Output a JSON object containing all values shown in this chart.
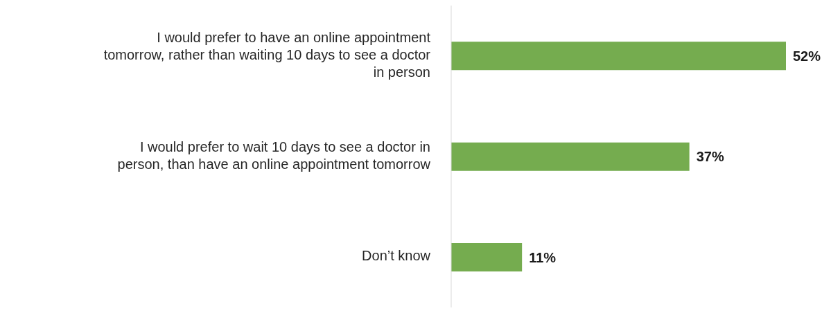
{
  "chart_data": {
    "type": "bar",
    "orientation": "horizontal",
    "categories": [
      "I would prefer to have an online appointment tomorrow, rather than waiting 10 days to see a doctor in person",
      "I would prefer to wait 10 days to see a doctor in person, than have an online appointment tomorrow",
      "Don’t know"
    ],
    "values": [
      52,
      37,
      11
    ],
    "color": "#75ac4f",
    "value_labels": [
      "52%",
      "37%",
      "11%"
    ]
  }
}
